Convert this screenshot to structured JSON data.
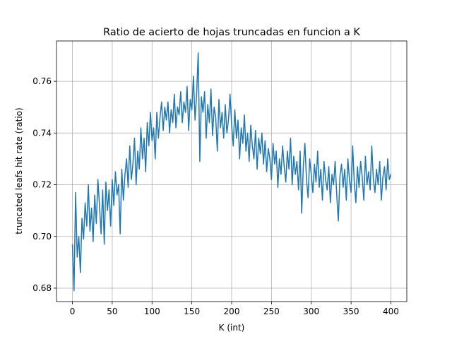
{
  "chart_data": {
    "type": "line",
    "title": "Ratio de acierto de hojas truncadas en funcion a K",
    "x_label": "K (int)",
    "y_label": "truncated leafs hit rate (ratio)",
    "x": [
      0,
      2,
      4,
      6,
      8,
      10,
      12,
      14,
      16,
      18,
      20,
      22,
      24,
      26,
      28,
      30,
      32,
      34,
      36,
      38,
      40,
      42,
      44,
      46,
      48,
      50,
      52,
      54,
      56,
      58,
      60,
      62,
      64,
      66,
      68,
      70,
      72,
      74,
      76,
      78,
      80,
      82,
      84,
      86,
      88,
      90,
      92,
      94,
      96,
      98,
      100,
      102,
      104,
      106,
      108,
      110,
      112,
      114,
      116,
      118,
      120,
      122,
      124,
      126,
      128,
      130,
      132,
      134,
      136,
      138,
      140,
      142,
      144,
      146,
      148,
      150,
      152,
      154,
      156,
      158,
      160,
      162,
      164,
      166,
      168,
      170,
      172,
      174,
      176,
      178,
      180,
      182,
      184,
      186,
      188,
      190,
      192,
      194,
      196,
      198,
      200,
      202,
      204,
      206,
      208,
      210,
      212,
      214,
      216,
      218,
      220,
      222,
      224,
      226,
      228,
      230,
      232,
      234,
      236,
      238,
      240,
      242,
      244,
      246,
      248,
      250,
      252,
      254,
      256,
      258,
      260,
      262,
      264,
      266,
      268,
      270,
      272,
      274,
      276,
      278,
      280,
      282,
      284,
      286,
      288,
      290,
      292,
      294,
      296,
      298,
      300,
      302,
      304,
      306,
      308,
      310,
      312,
      314,
      316,
      318,
      320,
      322,
      324,
      326,
      328,
      330,
      332,
      334,
      336,
      338,
      340,
      342,
      344,
      346,
      348,
      350,
      352,
      354,
      356,
      358,
      360,
      362,
      364,
      366,
      368,
      370,
      372,
      374,
      376,
      378,
      380,
      382,
      384,
      386,
      388,
      390,
      392,
      394,
      396,
      398,
      400
    ],
    "series": [
      {
        "name": "hit rate",
        "color": "#1f77b4",
        "values": [
          0.697,
          0.679,
          0.717,
          0.692,
          0.7,
          0.686,
          0.707,
          0.699,
          0.713,
          0.704,
          0.72,
          0.702,
          0.711,
          0.698,
          0.716,
          0.705,
          0.722,
          0.712,
          0.701,
          0.718,
          0.697,
          0.721,
          0.71,
          0.718,
          0.704,
          0.722,
          0.712,
          0.725,
          0.716,
          0.72,
          0.701,
          0.726,
          0.714,
          0.724,
          0.73,
          0.719,
          0.735,
          0.722,
          0.728,
          0.738,
          0.72,
          0.733,
          0.726,
          0.742,
          0.73,
          0.738,
          0.725,
          0.744,
          0.735,
          0.748,
          0.737,
          0.742,
          0.73,
          0.748,
          0.738,
          0.746,
          0.752,
          0.741,
          0.75,
          0.745,
          0.752,
          0.74,
          0.749,
          0.744,
          0.755,
          0.742,
          0.75,
          0.747,
          0.756,
          0.744,
          0.752,
          0.748,
          0.758,
          0.741,
          0.753,
          0.749,
          0.762,
          0.745,
          0.755,
          0.771,
          0.729,
          0.754,
          0.748,
          0.756,
          0.738,
          0.751,
          0.744,
          0.757,
          0.739,
          0.75,
          0.746,
          0.733,
          0.753,
          0.742,
          0.748,
          0.738,
          0.751,
          0.74,
          0.745,
          0.755,
          0.743,
          0.735,
          0.749,
          0.738,
          0.745,
          0.73,
          0.742,
          0.736,
          0.747,
          0.733,
          0.74,
          0.729,
          0.743,
          0.735,
          0.73,
          0.741,
          0.726,
          0.738,
          0.732,
          0.74,
          0.728,
          0.737,
          0.725,
          0.734,
          0.73,
          0.722,
          0.736,
          0.728,
          0.733,
          0.719,
          0.73,
          0.724,
          0.735,
          0.727,
          0.721,
          0.733,
          0.726,
          0.738,
          0.72,
          0.731,
          0.724,
          0.729,
          0.718,
          0.733,
          0.709,
          0.727,
          0.736,
          0.722,
          0.715,
          0.73,
          0.724,
          0.717,
          0.728,
          0.721,
          0.733,
          0.719,
          0.726,
          0.714,
          0.729,
          0.722,
          0.718,
          0.727,
          0.713,
          0.724,
          0.72,
          0.729,
          0.716,
          0.706,
          0.723,
          0.728,
          0.719,
          0.726,
          0.714,
          0.73,
          0.722,
          0.717,
          0.735,
          0.721,
          0.713,
          0.727,
          0.719,
          0.729,
          0.723,
          0.714,
          0.731,
          0.72,
          0.725,
          0.718,
          0.735,
          0.722,
          0.717,
          0.726,
          0.72,
          0.729,
          0.714,
          0.723,
          0.727,
          0.718,
          0.73,
          0.722,
          0.724
        ]
      }
    ],
    "xlim": [
      -20,
      420
    ],
    "ylim": [
      0.6748,
      0.7756
    ],
    "xticks": [
      0,
      50,
      100,
      150,
      200,
      250,
      300,
      350,
      400
    ],
    "yticks": [
      0.68,
      {
        "value": 0.7,
        "label": "0.70"
      },
      0.72,
      0.74,
      0.76
    ],
    "grid": true
  }
}
